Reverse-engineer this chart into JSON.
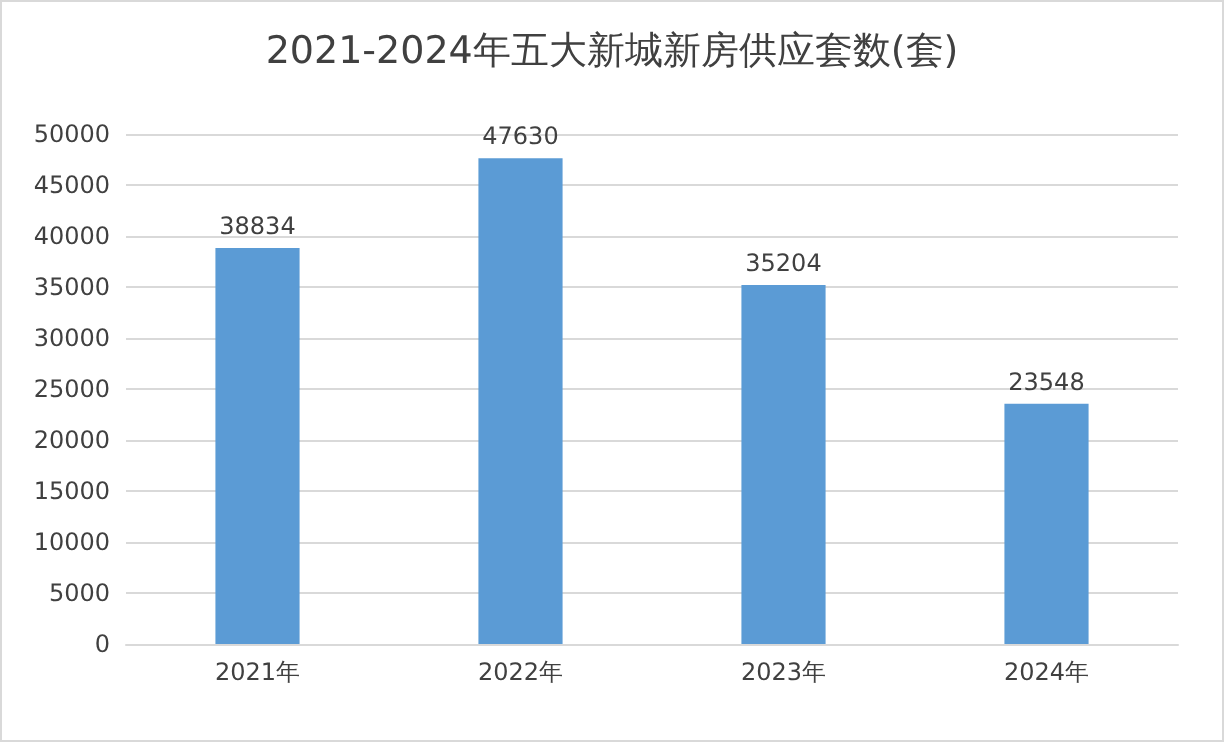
{
  "chart_data": {
    "type": "bar",
    "title": "2021-2024年五大新城新房供应套数(套)",
    "categories": [
      "2021年",
      "2022年",
      "2023年",
      "2024年"
    ],
    "values": [
      38834,
      47630,
      35204,
      23548
    ],
    "color": "#5b9bd5",
    "ylim": [
      0,
      50000
    ],
    "yticks": [
      0,
      5000,
      10000,
      15000,
      20000,
      25000,
      30000,
      35000,
      40000,
      45000,
      50000
    ],
    "grid": "y",
    "data_labels": true
  }
}
